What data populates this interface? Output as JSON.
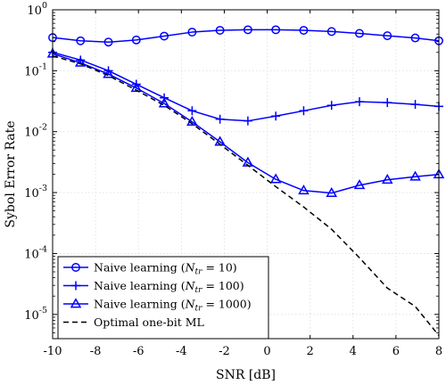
{
  "chart_data": {
    "type": "line",
    "xlabel": "SNR [dB]",
    "ylabel": "Sybol Error Rate",
    "xlim": [
      -10,
      8
    ],
    "ylim": [
      4e-06,
      1
    ],
    "yscale": "log",
    "grid": true,
    "legend_position": "bottom-left",
    "x_ticks": [
      -10,
      -8,
      -6,
      -4,
      -2,
      0,
      2,
      4,
      6,
      8
    ],
    "x_tick_labels": [
      "-10",
      "-8",
      "-6",
      "-4",
      "-2",
      "0",
      "2",
      "4",
      "6",
      "8"
    ],
    "y_ticks": [
      1e-05,
      0.0001,
      0.001,
      0.01,
      0.1,
      1
    ],
    "y_tick_labels": [
      {
        "base": "10",
        "exp": "-5"
      },
      {
        "base": "10",
        "exp": "-4"
      },
      {
        "base": "10",
        "exp": "-3"
      },
      {
        "base": "10",
        "exp": "-2"
      },
      {
        "base": "10",
        "exp": "-1"
      },
      {
        "base": "10",
        "exp": "0"
      }
    ],
    "series": [
      {
        "label": "Naive learning (N_tr = 10)",
        "legend": {
          "prefix": "Naive learning (",
          "var": "N",
          "sub": "tr",
          "suffix": " = 10)"
        },
        "color": "#0000ff",
        "marker": "circle",
        "dash": "solid",
        "x": [
          -10,
          -8.7,
          -7.4,
          -6.1,
          -4.8,
          -3.5,
          -2.2,
          -0.9,
          0.4,
          1.7,
          3.0,
          4.3,
          5.6,
          6.9,
          8.0
        ],
        "y": [
          0.35,
          0.31,
          0.295,
          0.32,
          0.37,
          0.43,
          0.46,
          0.47,
          0.47,
          0.46,
          0.44,
          0.41,
          0.375,
          0.345,
          0.31
        ]
      },
      {
        "label": "Naive learning (N_tr = 100)",
        "legend": {
          "prefix": "Naive learning (",
          "var": "N",
          "sub": "tr",
          "suffix": " = 100)"
        },
        "color": "#0000ff",
        "marker": "plus",
        "dash": "solid",
        "x": [
          -10,
          -8.7,
          -7.4,
          -6.1,
          -4.8,
          -3.5,
          -2.2,
          -0.9,
          0.4,
          1.7,
          3.0,
          4.3,
          5.6,
          6.9,
          8.0
        ],
        "y": [
          0.2,
          0.15,
          0.1,
          0.06,
          0.036,
          0.022,
          0.016,
          0.015,
          0.018,
          0.022,
          0.027,
          0.031,
          0.03,
          0.028,
          0.026
        ]
      },
      {
        "label": "Naive learning (N_tr = 1000)",
        "legend": {
          "prefix": "Naive learning (",
          "var": "N",
          "sub": "tr",
          "suffix": " = 1000)"
        },
        "color": "#0000ff",
        "marker": "triangle",
        "dash": "solid",
        "x": [
          -10,
          -8.7,
          -7.4,
          -6.1,
          -4.8,
          -3.5,
          -2.2,
          -0.9,
          0.4,
          1.7,
          3.0,
          4.3,
          5.6,
          6.9,
          8.0
        ],
        "y": [
          0.19,
          0.135,
          0.088,
          0.052,
          0.029,
          0.0145,
          0.0068,
          0.0031,
          0.00165,
          0.00108,
          0.00098,
          0.00132,
          0.00162,
          0.00182,
          0.00198
        ]
      },
      {
        "label": "Optimal one-bit ML",
        "legend": {
          "prefix": "Optimal one-bit ML",
          "var": "",
          "sub": "",
          "suffix": ""
        },
        "color": "#000000",
        "marker": "none",
        "dash": "dashed",
        "x": [
          -10,
          -8.7,
          -7.4,
          -6.1,
          -4.8,
          -3.5,
          -2.2,
          -0.9,
          0.4,
          1.7,
          3.0,
          4.3,
          5.6,
          6.9,
          8.0
        ],
        "y": [
          0.175,
          0.13,
          0.083,
          0.048,
          0.027,
          0.0135,
          0.0062,
          0.0028,
          0.00125,
          0.00058,
          0.00025,
          8.5e-05,
          2.7e-05,
          1.35e-05,
          4.5e-06
        ]
      }
    ]
  }
}
